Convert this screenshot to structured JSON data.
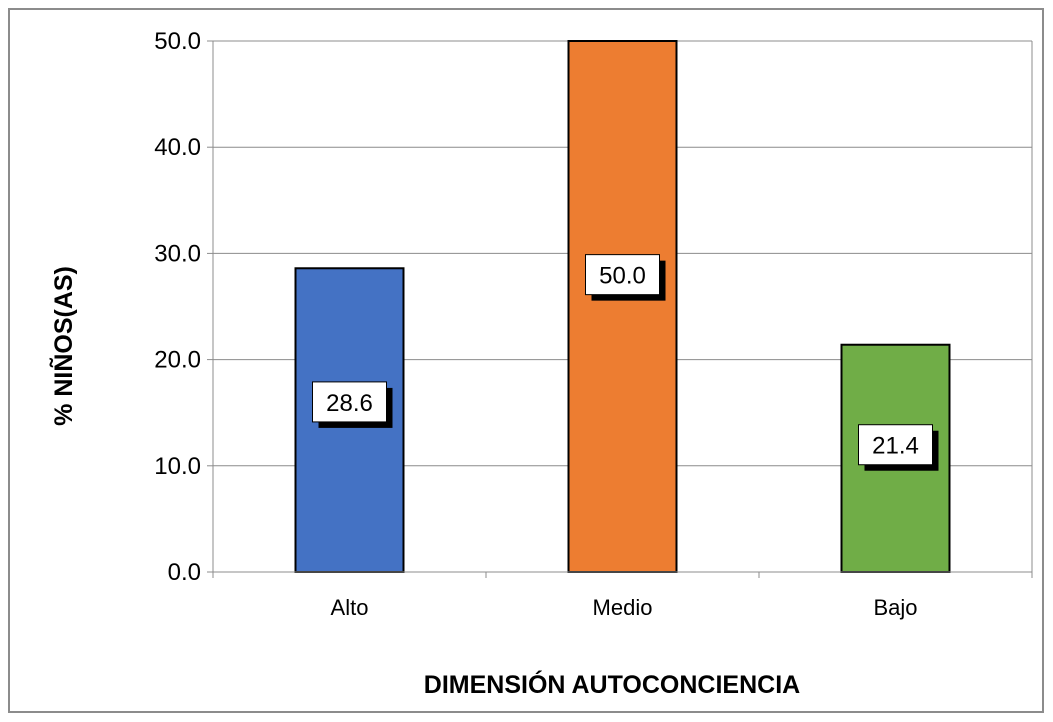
{
  "chart_data": {
    "type": "bar",
    "title": "",
    "xlabel": "DIMENSIÓN AUTOCONCIENCIA",
    "ylabel": "% NIÑOS(AS)",
    "categories": [
      "Alto",
      "Medio",
      "Bajo"
    ],
    "values": [
      28.6,
      50.0,
      21.4
    ],
    "data_labels": [
      "28.6",
      "50.0",
      "21.4"
    ],
    "colors": [
      "#4472c4",
      "#ed7d31",
      "#70ad47"
    ],
    "ylim": [
      0,
      50
    ],
    "yticks": [
      0,
      10,
      20,
      30,
      40,
      50
    ],
    "ytick_labels": [
      "0.0",
      "10.0",
      "20.0",
      "30.0",
      "40.0",
      "50.0"
    ],
    "grid": true,
    "legend": "none"
  }
}
